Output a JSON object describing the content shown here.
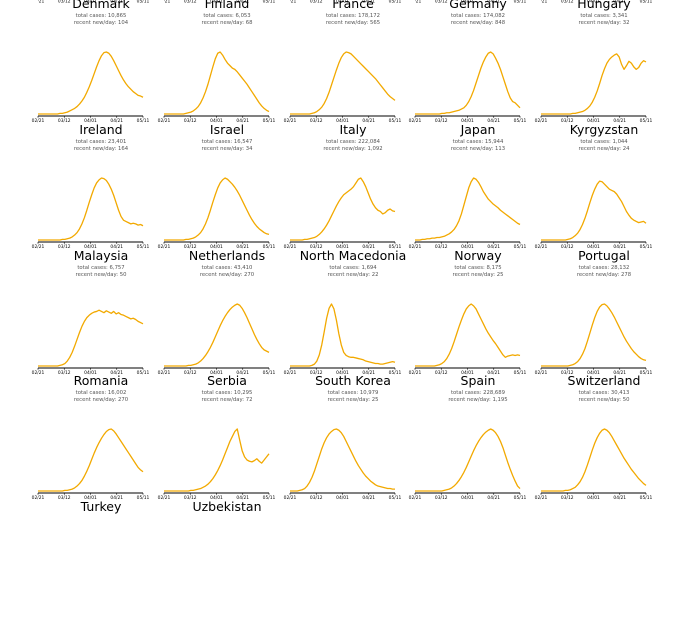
{
  "chart_data": {
    "type": "line",
    "line_color": "#f2a900",
    "axis_color": "#000000",
    "x_tick_labels": [
      "02/21",
      "03/12",
      "04/01",
      "04/21",
      "05/11"
    ],
    "total_prefix": "total cases: ",
    "recent_prefix": "recent new/day: ",
    "clipped_top_row": [
      "Denmark",
      "Finland",
      "France",
      "Germany",
      "Hungary"
    ],
    "panels": [
      {
        "country": "Denmark",
        "total_cases": "10,865",
        "recent_new_per_day": "104",
        "y": [
          0,
          0,
          0,
          0,
          0,
          0,
          0,
          0,
          0,
          1,
          1,
          2,
          3,
          5,
          7,
          9,
          12,
          16,
          21,
          27,
          35,
          44,
          54,
          65,
          76,
          86,
          94,
          99,
          100,
          98,
          93,
          86,
          78,
          70,
          62,
          55,
          49,
          44,
          40,
          36,
          33,
          30,
          29,
          27
        ]
      },
      {
        "country": "Finland",
        "total_cases": "6,053",
        "recent_new_per_day": "68",
        "y": [
          0,
          0,
          0,
          0,
          0,
          0,
          0,
          0,
          0,
          1,
          2,
          3,
          5,
          8,
          12,
          18,
          26,
          36,
          48,
          62,
          76,
          89,
          98,
          100,
          95,
          88,
          82,
          78,
          74,
          72,
          68,
          63,
          58,
          53,
          48,
          42,
          36,
          30,
          24,
          18,
          13,
          9,
          6,
          4
        ]
      },
      {
        "country": "France",
        "total_cases": "178,172",
        "recent_new_per_day": "565",
        "y": [
          0,
          0,
          0,
          0,
          0,
          0,
          0,
          0,
          0,
          1,
          2,
          4,
          7,
          11,
          17,
          25,
          35,
          47,
          59,
          71,
          82,
          91,
          97,
          100,
          99,
          97,
          93,
          89,
          85,
          81,
          77,
          73,
          69,
          65,
          61,
          57,
          52,
          47,
          42,
          37,
          32,
          28,
          25,
          22
        ]
      },
      {
        "country": "Germany",
        "total_cases": "174,082",
        "recent_new_per_day": "848",
        "y": [
          0,
          0,
          0,
          0,
          0,
          0,
          0,
          0,
          0,
          0,
          0,
          1,
          1,
          2,
          2,
          3,
          4,
          5,
          6,
          8,
          10,
          14,
          20,
          28,
          38,
          50,
          62,
          74,
          84,
          92,
          98,
          100,
          97,
          90,
          82,
          72,
          60,
          48,
          36,
          26,
          20,
          18,
          14,
          10
        ]
      },
      {
        "country": "Hungary",
        "total_cases": "3,341",
        "recent_new_per_day": "32",
        "y": [
          0,
          0,
          0,
          0,
          0,
          0,
          0,
          0,
          0,
          0,
          0,
          0,
          0,
          1,
          1,
          2,
          3,
          4,
          6,
          9,
          13,
          19,
          27,
          37,
          49,
          62,
          73,
          82,
          88,
          92,
          95,
          97,
          92,
          80,
          72,
          78,
          85,
          82,
          76,
          72,
          75,
          82,
          86,
          84
        ]
      },
      {
        "country": "Ireland",
        "total_cases": "23,401",
        "recent_new_per_day": "164",
        "y": [
          0,
          0,
          0,
          0,
          0,
          0,
          0,
          0,
          0,
          0,
          1,
          1,
          2,
          3,
          5,
          8,
          12,
          18,
          26,
          36,
          48,
          61,
          73,
          84,
          92,
          97,
          100,
          99,
          96,
          90,
          82,
          72,
          60,
          48,
          38,
          32,
          30,
          28,
          26,
          27,
          26,
          24,
          25,
          23
        ]
      },
      {
        "country": "Israel",
        "total_cases": "16,547",
        "recent_new_per_day": "34",
        "y": [
          0,
          0,
          0,
          0,
          0,
          0,
          0,
          0,
          0,
          1,
          1,
          2,
          3,
          5,
          8,
          12,
          18,
          26,
          36,
          48,
          61,
          73,
          84,
          92,
          97,
          100,
          98,
          94,
          90,
          85,
          79,
          72,
          64,
          56,
          48,
          40,
          33,
          27,
          22,
          18,
          15,
          12,
          10,
          9
        ]
      },
      {
        "country": "Italy",
        "total_cases": "222,084",
        "recent_new_per_day": "1,092",
        "y": [
          0,
          0,
          0,
          0,
          0,
          0,
          1,
          1,
          2,
          3,
          4,
          6,
          9,
          13,
          18,
          24,
          31,
          39,
          47,
          55,
          62,
          68,
          73,
          76,
          79,
          82,
          86,
          92,
          98,
          100,
          94,
          86,
          76,
          66,
          58,
          52,
          48,
          46,
          42,
          44,
          48,
          50,
          47,
          46
        ]
      },
      {
        "country": "Japan",
        "total_cases": "15,944",
        "recent_new_per_day": "113",
        "y": [
          0,
          0,
          0,
          1,
          1,
          2,
          2,
          3,
          3,
          4,
          4,
          5,
          6,
          8,
          10,
          13,
          17,
          23,
          31,
          42,
          56,
          70,
          84,
          94,
          100,
          98,
          93,
          86,
          78,
          72,
          66,
          62,
          58,
          55,
          52,
          48,
          45,
          42,
          39,
          36,
          33,
          30,
          27,
          25
        ]
      },
      {
        "country": "Kyrgyzstan",
        "total_cases": "1,044",
        "recent_new_per_day": "24",
        "y": [
          0,
          0,
          0,
          0,
          0,
          0,
          0,
          0,
          0,
          0,
          0,
          1,
          2,
          4,
          7,
          11,
          17,
          25,
          35,
          47,
          60,
          72,
          82,
          90,
          95,
          94,
          90,
          86,
          82,
          80,
          78,
          74,
          68,
          62,
          54,
          46,
          40,
          35,
          32,
          30,
          28,
          29,
          30,
          27
        ]
      },
      {
        "country": "Malaysia",
        "total_cases": "6,757",
        "recent_new_per_day": "50",
        "y": [
          0,
          0,
          0,
          0,
          0,
          0,
          0,
          0,
          0,
          1,
          2,
          4,
          8,
          14,
          22,
          32,
          43,
          54,
          64,
          72,
          78,
          82,
          85,
          87,
          88,
          90,
          88,
          86,
          89,
          87,
          85,
          88,
          84,
          86,
          83,
          82,
          80,
          78,
          76,
          77,
          75,
          72,
          70,
          68
        ]
      },
      {
        "country": "Netherlands",
        "total_cases": "43,410",
        "recent_new_per_day": "270",
        "y": [
          0,
          0,
          0,
          0,
          0,
          0,
          0,
          0,
          0,
          0,
          1,
          1,
          2,
          3,
          5,
          8,
          12,
          17,
          23,
          30,
          38,
          47,
          56,
          65,
          73,
          80,
          86,
          91,
          95,
          98,
          100,
          98,
          93,
          86,
          78,
          69,
          60,
          51,
          43,
          36,
          30,
          26,
          24,
          22
        ]
      },
      {
        "country": "North Macedonia",
        "total_cases": "1,694",
        "recent_new_per_day": "22",
        "y": [
          0,
          0,
          0,
          0,
          0,
          0,
          0,
          0,
          0,
          1,
          3,
          8,
          18,
          34,
          55,
          77,
          93,
          100,
          92,
          74,
          52,
          34,
          22,
          17,
          15,
          14,
          14,
          13,
          12,
          11,
          10,
          8,
          7,
          6,
          5,
          4,
          4,
          3,
          3,
          4,
          5,
          6,
          7,
          6
        ]
      },
      {
        "country": "Norway",
        "total_cases": "8,175",
        "recent_new_per_day": "25",
        "y": [
          0,
          0,
          0,
          0,
          0,
          0,
          0,
          0,
          0,
          1,
          2,
          4,
          7,
          12,
          19,
          28,
          39,
          51,
          63,
          74,
          84,
          92,
          97,
          100,
          97,
          92,
          84,
          76,
          68,
          60,
          53,
          47,
          41,
          36,
          30,
          24,
          18,
          14,
          16,
          17,
          18,
          17,
          18,
          17
        ]
      },
      {
        "country": "Portugal",
        "total_cases": "28,132",
        "recent_new_per_day": "278",
        "y": [
          0,
          0,
          0,
          0,
          0,
          0,
          0,
          0,
          0,
          0,
          0,
          0,
          1,
          2,
          4,
          7,
          12,
          19,
          28,
          40,
          53,
          66,
          78,
          88,
          95,
          99,
          100,
          97,
          92,
          86,
          79,
          71,
          63,
          55,
          47,
          40,
          34,
          28,
          23,
          19,
          15,
          12,
          10,
          9
        ]
      },
      {
        "country": "Romania",
        "total_cases": "16,002",
        "recent_new_per_day": "270",
        "y": [
          0,
          0,
          0,
          0,
          0,
          0,
          0,
          0,
          0,
          0,
          0,
          1,
          1,
          2,
          3,
          5,
          8,
          12,
          17,
          24,
          32,
          41,
          51,
          61,
          70,
          78,
          85,
          91,
          96,
          99,
          100,
          97,
          92,
          86,
          80,
          74,
          68,
          62,
          56,
          50,
          44,
          38,
          34,
          31
        ]
      },
      {
        "country": "Serbia",
        "total_cases": "10,295",
        "recent_new_per_day": "72",
        "y": [
          0,
          0,
          0,
          0,
          0,
          0,
          0,
          0,
          0,
          0,
          0,
          1,
          1,
          2,
          3,
          4,
          6,
          8,
          11,
          15,
          20,
          26,
          33,
          41,
          50,
          60,
          70,
          80,
          88,
          96,
          100,
          82,
          65,
          55,
          50,
          48,
          47,
          49,
          52,
          48,
          45,
          50,
          55,
          60
        ]
      },
      {
        "country": "South Korea",
        "total_cases": "10,979",
        "recent_new_per_day": "25",
        "y": [
          0,
          0,
          0,
          0,
          1,
          2,
          4,
          8,
          14,
          22,
          32,
          44,
          56,
          68,
          78,
          86,
          92,
          96,
          99,
          100,
          98,
          94,
          88,
          80,
          72,
          64,
          56,
          48,
          41,
          35,
          29,
          24,
          20,
          16,
          13,
          10,
          8,
          7,
          6,
          5,
          4,
          4,
          3,
          3
        ]
      },
      {
        "country": "Spain",
        "total_cases": "228,689",
        "recent_new_per_day": "1,195",
        "y": [
          0,
          0,
          0,
          0,
          0,
          0,
          0,
          0,
          0,
          0,
          0,
          0,
          1,
          2,
          3,
          5,
          8,
          12,
          17,
          23,
          30,
          38,
          47,
          56,
          65,
          73,
          80,
          86,
          91,
          95,
          98,
          100,
          98,
          94,
          88,
          80,
          70,
          58,
          46,
          35,
          25,
          16,
          8,
          4
        ]
      },
      {
        "country": "Switzerland",
        "total_cases": "30,413",
        "recent_new_per_day": "50",
        "y": [
          0,
          0,
          0,
          0,
          0,
          0,
          0,
          0,
          0,
          0,
          1,
          1,
          2,
          4,
          6,
          10,
          15,
          22,
          31,
          42,
          54,
          66,
          77,
          86,
          93,
          98,
          100,
          98,
          94,
          88,
          81,
          74,
          67,
          60,
          53,
          47,
          41,
          35,
          30,
          25,
          20,
          16,
          12,
          9
        ]
      },
      {
        "country": "Turkey",
        "total_cases": "",
        "recent_new_per_day": "",
        "y": []
      },
      {
        "country": "Uzbekistan",
        "total_cases": "",
        "recent_new_per_day": "",
        "y": []
      }
    ]
  }
}
